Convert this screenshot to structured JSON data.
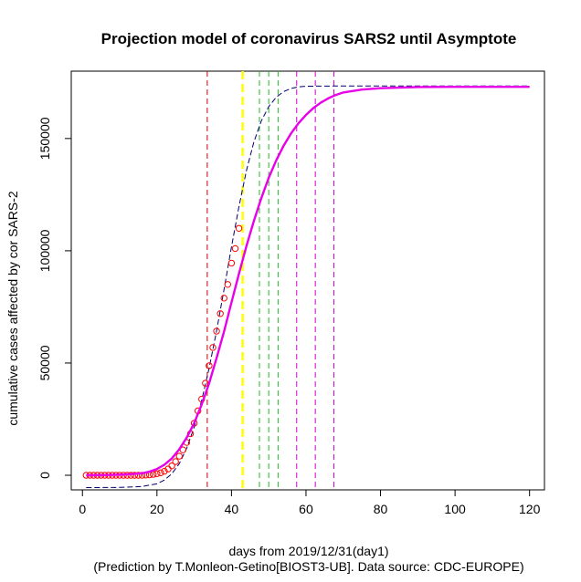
{
  "chart_data": {
    "type": "scatter",
    "title": "Projection model of coronavirus SARS2 until Asymptote",
    "xlabel": "days from 2019/12/31(day1)",
    "subcaption": "(Prediction by T.Monleon-Getino[BIOST3-UB]. Data source: CDC-EUROPE)",
    "ylabel": "cumulative cases affected by cor SARS-2",
    "xlim": [
      -3,
      124
    ],
    "ylim": [
      -6500,
      180000
    ],
    "x_ticks": [
      0,
      20,
      40,
      60,
      80,
      100,
      120
    ],
    "y_ticks": [
      0,
      50000,
      100000,
      150000
    ],
    "grid": false,
    "colors": {
      "fit": "#e800e8",
      "logistic": "#00006e",
      "points": "#ff0000",
      "line_red": "#cc0000",
      "line_yellow": "#ffff00",
      "line_green": "#22b822",
      "line_magenta": "#d000d0"
    },
    "observed": {
      "x": [
        1,
        2,
        3,
        4,
        5,
        6,
        7,
        8,
        9,
        10,
        11,
        12,
        13,
        14,
        15,
        16,
        17,
        18,
        19,
        20,
        21,
        22,
        23,
        24,
        25,
        26,
        27,
        28,
        29,
        30,
        31,
        32,
        33,
        34,
        35,
        36,
        37,
        38,
        39,
        40,
        41,
        42
      ],
      "y": [
        0,
        0,
        0,
        0,
        0,
        0,
        0,
        0,
        0,
        0,
        0,
        0,
        0,
        0,
        0,
        0,
        100,
        200,
        400,
        700,
        1100,
        1800,
        2800,
        4200,
        6100,
        8500,
        11300,
        14600,
        18500,
        23200,
        28700,
        33900,
        41000,
        48800,
        56900,
        64200,
        72000,
        78900,
        85000,
        94500,
        101000,
        110000
      ]
    },
    "fitted_curve": {
      "x": [
        1,
        6,
        11,
        16,
        18,
        20,
        22,
        24,
        26,
        28,
        30,
        32,
        34,
        36,
        38,
        40,
        42,
        44,
        46,
        48,
        50,
        52,
        54,
        56,
        58,
        60,
        62,
        64,
        66,
        68,
        70,
        75,
        80,
        90,
        100,
        110,
        120
      ],
      "y": [
        0,
        80,
        300,
        900,
        1600,
        2800,
        4700,
        7500,
        11600,
        16800,
        23300,
        31500,
        41000,
        52200,
        64000,
        77000,
        89700,
        102000,
        113200,
        123400,
        132500,
        140200,
        146800,
        152300,
        156800,
        160500,
        163600,
        166000,
        167900,
        169400,
        170500,
        171800,
        172400,
        172900,
        173000,
        173000,
        173000
      ]
    },
    "logistic_curve": {
      "x": [
        1,
        10,
        16,
        20,
        22,
        24,
        26,
        28,
        30,
        32,
        34,
        36,
        38,
        40,
        42,
        44,
        46,
        48,
        50,
        52,
        54,
        56,
        58,
        60,
        70,
        80,
        100,
        120
      ],
      "y": [
        -5500,
        -5400,
        -5000,
        -3800,
        -2100,
        700,
        5200,
        12100,
        21500,
        33300,
        47700,
        64300,
        82700,
        101700,
        119600,
        135600,
        148400,
        157800,
        164200,
        168400,
        170900,
        172300,
        173000,
        173300,
        173400,
        173400,
        173400,
        173400
      ]
    },
    "vertical_lines": [
      {
        "x": 33.5,
        "color": "line_red",
        "width": 1
      },
      {
        "x": 43,
        "color": "line_yellow",
        "width": 2
      },
      {
        "x": 47.5,
        "color": "line_green",
        "width": 1
      },
      {
        "x": 50,
        "color": "line_green",
        "width": 1
      },
      {
        "x": 52.5,
        "color": "line_green",
        "width": 1
      },
      {
        "x": 57.5,
        "color": "line_magenta",
        "width": 1
      },
      {
        "x": 62.5,
        "color": "line_magenta",
        "width": 1
      },
      {
        "x": 67.5,
        "color": "line_magenta",
        "width": 1
      }
    ]
  }
}
